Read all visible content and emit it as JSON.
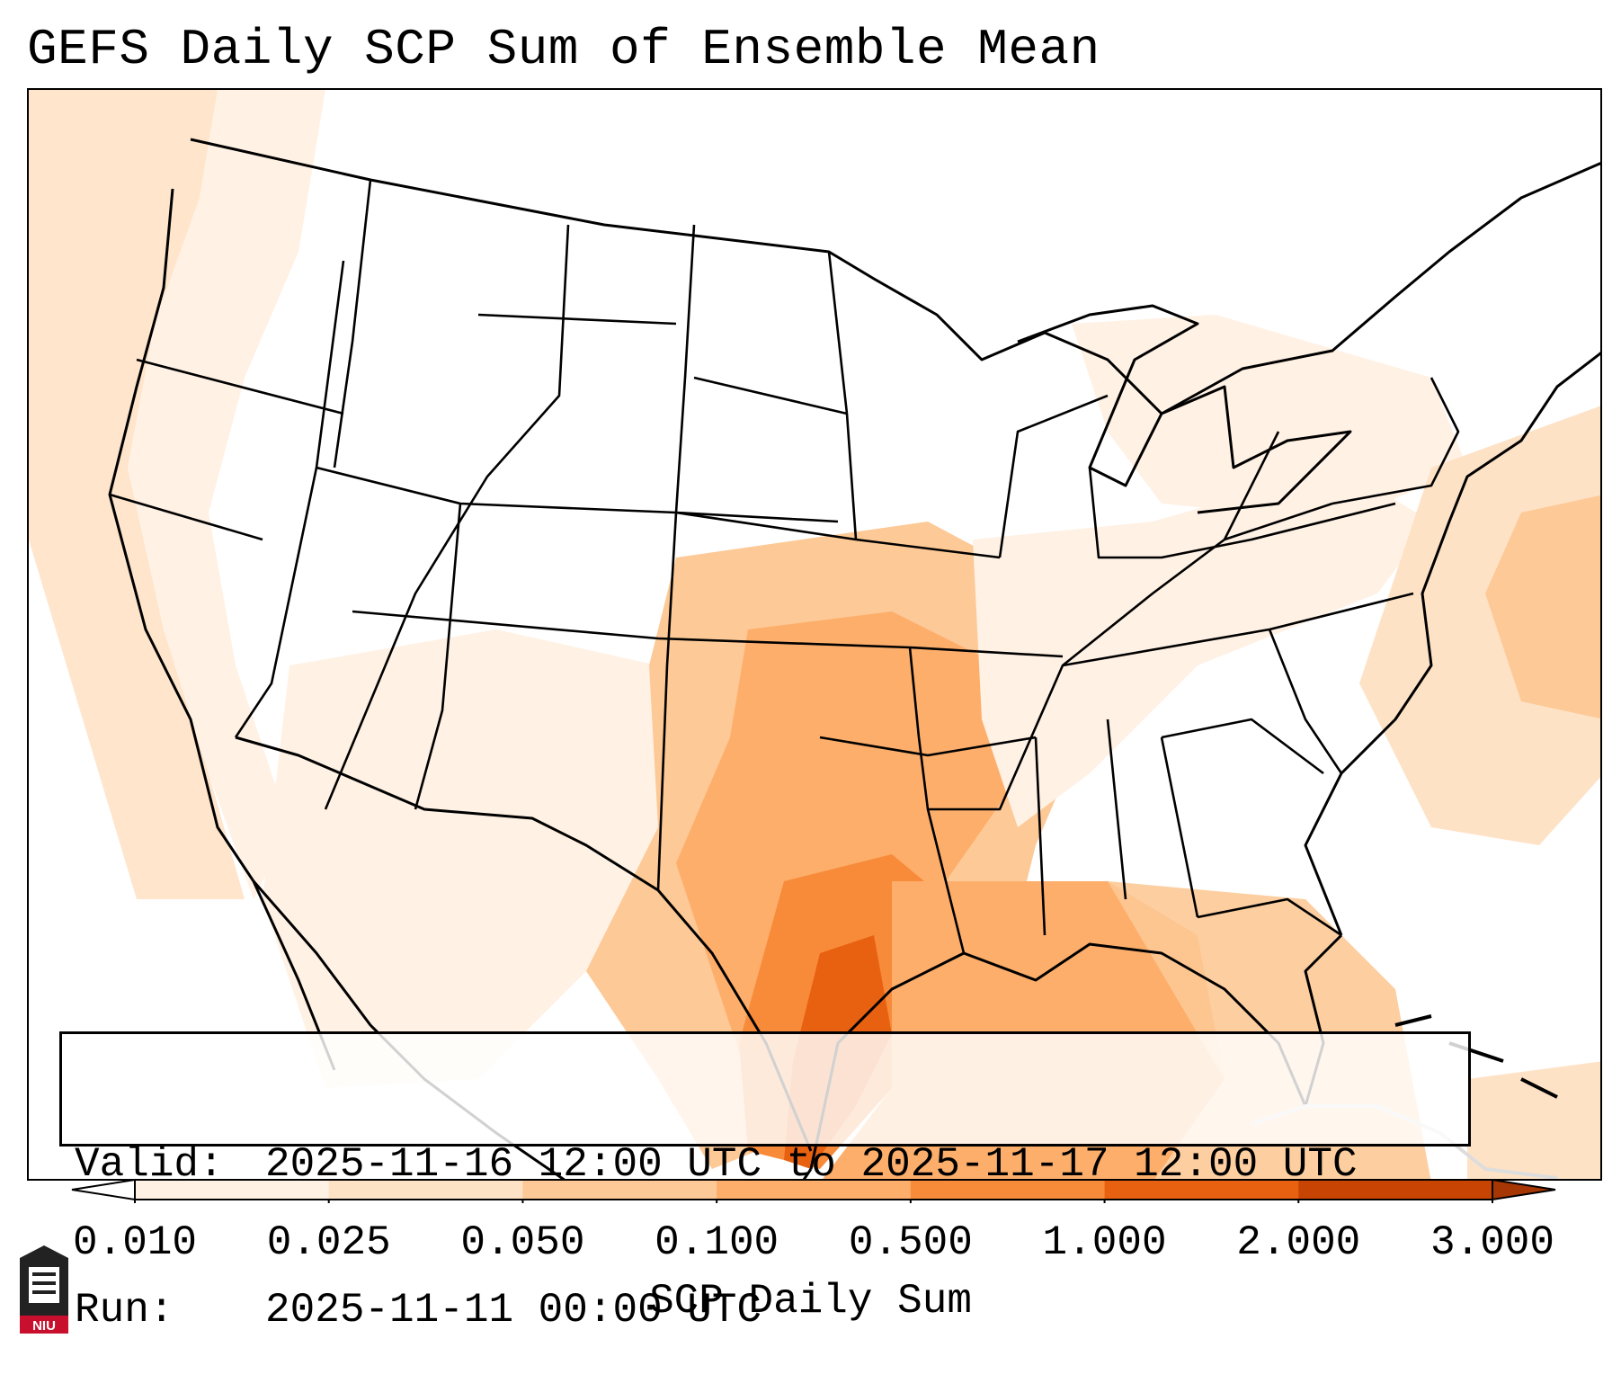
{
  "title": "GEFS Daily SCP Sum of Ensemble Mean",
  "info": {
    "valid_label": "Valid:",
    "valid_value": "2025-11-16 12:00 UTC to 2025-11-17 12:00 UTC",
    "run_label": "Run:",
    "run_value": "2025-11-11 00:00 UTC"
  },
  "colorbar": {
    "label": "SCP Daily Sum",
    "ticks": [
      "0.010",
      "0.025",
      "0.050",
      "0.100",
      "0.500",
      "1.000",
      "2.000",
      "3.000"
    ],
    "colors": [
      "#fff1e4",
      "#fee2c6",
      "#fdc996",
      "#fdae6b",
      "#f88b3a",
      "#e86110",
      "#c84402"
    ],
    "under_color": "#ffffff",
    "over_color": "#a63603"
  },
  "logo": {
    "text": "NIU"
  }
}
